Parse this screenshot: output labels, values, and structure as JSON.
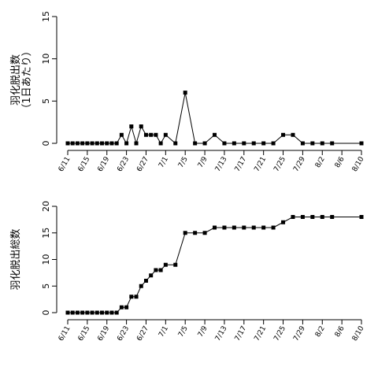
{
  "chart_data": [
    {
      "type": "line",
      "title": "",
      "ylabel_lines": [
        "羽化脱出数",
        "（1日あたり）"
      ],
      "ylim": [
        0,
        15
      ],
      "yticks": [
        0,
        5,
        10,
        15
      ],
      "xticks": [
        "6/11",
        "6/15",
        "6/19",
        "6/23",
        "6/27",
        "7/1",
        "7/5",
        "7/9",
        "7/13",
        "7/17",
        "7/21",
        "7/25",
        "7/29",
        "8/2",
        "8/6",
        "8/10"
      ],
      "x": [
        "6/11",
        "6/12",
        "6/13",
        "6/14",
        "6/15",
        "6/16",
        "6/17",
        "6/18",
        "6/19",
        "6/20",
        "6/21",
        "6/22",
        "6/23",
        "6/24",
        "6/25",
        "6/26",
        "6/27",
        "6/28",
        "6/29",
        "6/30",
        "7/1",
        "7/3",
        "7/5",
        "7/7",
        "7/9",
        "7/11",
        "7/13",
        "7/15",
        "7/17",
        "7/19",
        "7/21",
        "7/23",
        "7/25",
        "7/27",
        "7/29",
        "7/31",
        "8/2",
        "8/4",
        "8/10"
      ],
      "y": [
        0,
        0,
        0,
        0,
        0,
        0,
        0,
        0,
        0,
        0,
        0,
        1,
        0,
        2,
        0,
        2,
        1,
        1,
        1,
        0,
        1,
        0,
        6,
        0,
        0,
        1,
        0,
        0,
        0,
        0,
        0,
        0,
        1,
        1,
        0,
        0,
        0,
        0,
        0
      ]
    },
    {
      "type": "line",
      "title": "",
      "ylabel_lines": [
        "羽化脱出総数"
      ],
      "ylim": [
        0,
        20
      ],
      "yticks": [
        0,
        5,
        10,
        15,
        20
      ],
      "xticks": [
        "6/11",
        "6/15",
        "6/19",
        "6/23",
        "6/27",
        "7/1",
        "7/5",
        "7/9",
        "7/13",
        "7/17",
        "7/21",
        "7/25",
        "7/29",
        "8/2",
        "8/6",
        "8/10"
      ],
      "x": [
        "6/11",
        "6/12",
        "6/13",
        "6/14",
        "6/15",
        "6/16",
        "6/17",
        "6/18",
        "6/19",
        "6/20",
        "6/21",
        "6/22",
        "6/23",
        "6/24",
        "6/25",
        "6/26",
        "6/27",
        "6/28",
        "6/29",
        "6/30",
        "7/1",
        "7/3",
        "7/5",
        "7/7",
        "7/9",
        "7/11",
        "7/13",
        "7/15",
        "7/17",
        "7/19",
        "7/21",
        "7/23",
        "7/25",
        "7/27",
        "7/29",
        "7/31",
        "8/2",
        "8/4",
        "8/10"
      ],
      "y": [
        0,
        0,
        0,
        0,
        0,
        0,
        0,
        0,
        0,
        0,
        0,
        1,
        1,
        3,
        3,
        5,
        6,
        7,
        8,
        8,
        9,
        9,
        15,
        15,
        15,
        16,
        16,
        16,
        16,
        16,
        16,
        16,
        17,
        18,
        18,
        18,
        18,
        18,
        18
      ]
    }
  ]
}
